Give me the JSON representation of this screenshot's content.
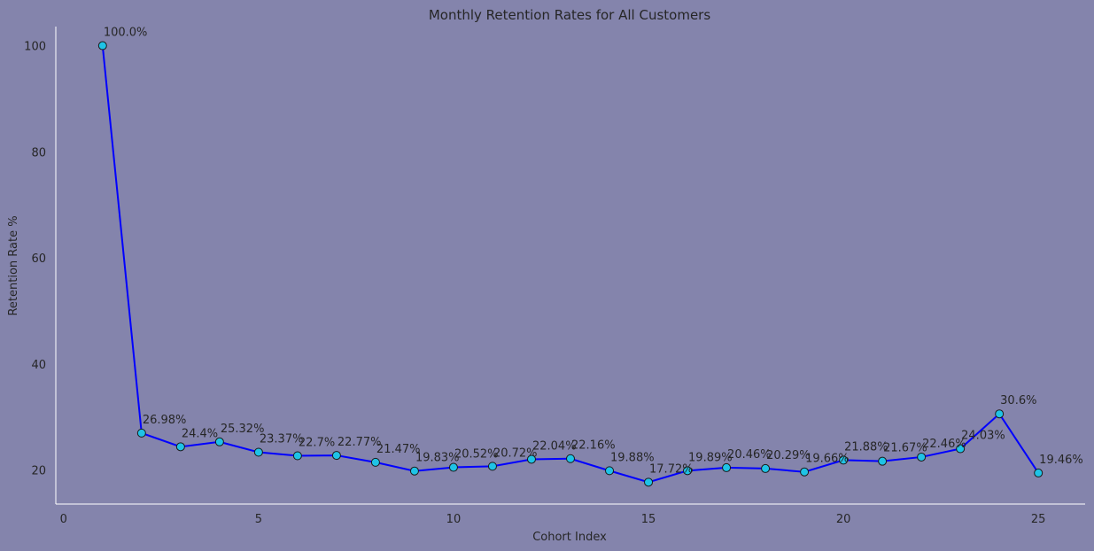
{
  "chart_data": {
    "type": "line",
    "title": "Monthly Retention Rates for All Customers",
    "xlabel": "Cohort Index",
    "ylabel": "Retention Rate %",
    "xlim": [
      -0.2,
      26.2
    ],
    "ylim": [
      13.6,
      103.6
    ],
    "xticks": [
      0,
      5,
      10,
      15,
      20,
      25
    ],
    "yticks": [
      20,
      40,
      60,
      80,
      100
    ],
    "grid": false,
    "colors": {
      "background": "#8484ac",
      "line": "#0000ff",
      "marker": "#1fc3e6",
      "marker_edge": "#1a1a1a",
      "axis": "#ffffff"
    },
    "x": [
      1,
      2,
      3,
      4,
      5,
      6,
      7,
      8,
      9,
      10,
      11,
      12,
      13,
      14,
      15,
      16,
      17,
      18,
      19,
      20,
      21,
      22,
      23,
      24,
      25
    ],
    "values": [
      100.0,
      26.98,
      24.4,
      25.32,
      23.37,
      22.7,
      22.77,
      21.47,
      19.83,
      20.52,
      20.72,
      22.04,
      22.16,
      19.88,
      17.72,
      19.89,
      20.46,
      20.29,
      19.66,
      21.88,
      21.67,
      22.46,
      24.03,
      30.6,
      19.46
    ],
    "labels": [
      "100.0%",
      "26.98%",
      "24.4%",
      "25.32%",
      "23.37%",
      "22.7%",
      "22.77%",
      "21.47%",
      "19.83%",
      "20.52%",
      "20.72%",
      "22.04%",
      "22.16%",
      "19.88%",
      "17.72%",
      "19.89%",
      "20.46%",
      "20.29%",
      "19.66%",
      "21.88%",
      "21.67%",
      "22.46%",
      "24.03%",
      "30.6%",
      "19.46%"
    ]
  }
}
